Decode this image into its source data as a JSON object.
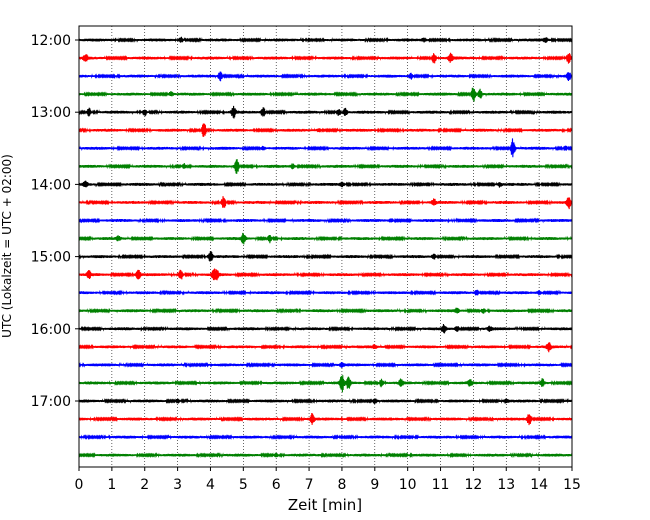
{
  "chart_data": {
    "type": "line",
    "title": "",
    "xlabel": "Zeit  [min]",
    "ylabel": "UTC (Lokalzeit = UTC + 02:00)",
    "xlim": [
      0,
      15
    ],
    "x_ticks": [
      "0",
      "1",
      "2",
      "3",
      "4",
      "5",
      "6",
      "7",
      "8",
      "9",
      "10",
      "11",
      "12",
      "13",
      "14",
      "15"
    ],
    "y_ticks": [
      "12:00",
      "13:00",
      "14:00",
      "15:00",
      "16:00",
      "17:00"
    ],
    "grid": "vertical dotted",
    "trace_interval_minutes": 15,
    "start_time": "12:00",
    "colors": [
      "#000000",
      "#ff0000",
      "#0000ff",
      "#008000"
    ],
    "series": [
      {
        "start": "12:00",
        "events": [
          [
            3.1,
            0.5
          ],
          [
            10.5,
            0.35
          ],
          [
            14.2,
            0.4
          ]
        ]
      },
      {
        "start": "12:15",
        "events": [
          [
            0.2,
            0.6
          ],
          [
            10.8,
            0.9
          ],
          [
            11.3,
            0.8
          ],
          [
            14.9,
            0.9
          ]
        ]
      },
      {
        "start": "12:30",
        "events": [
          [
            4.3,
            0.8
          ],
          [
            10.1,
            0.5
          ],
          [
            14.9,
            0.6
          ]
        ]
      },
      {
        "start": "12:45",
        "events": [
          [
            2.8,
            0.4
          ],
          [
            12.0,
            1.3
          ],
          [
            12.2,
            0.8
          ]
        ]
      },
      {
        "start": "13:00",
        "events": [
          [
            0.3,
            0.7
          ],
          [
            2.0,
            0.6
          ],
          [
            4.7,
            0.9
          ],
          [
            5.6,
            0.8
          ],
          [
            7.9,
            0.6
          ],
          [
            8.1,
            0.6
          ]
        ]
      },
      {
        "start": "13:15",
        "events": [
          [
            3.8,
            1.4
          ],
          [
            7.3,
            0.3
          ]
        ]
      },
      {
        "start": "13:30",
        "events": [
          [
            5.6,
            0.35
          ],
          [
            13.2,
            1.6
          ],
          [
            14.8,
            0.4
          ]
        ]
      },
      {
        "start": "13:45",
        "events": [
          [
            3.2,
            0.5
          ],
          [
            4.8,
            1.3
          ],
          [
            6.5,
            0.4
          ]
        ]
      },
      {
        "start": "14:00",
        "events": [
          [
            0.2,
            0.5
          ],
          [
            8.0,
            0.3
          ],
          [
            12.8,
            0.4
          ]
        ]
      },
      {
        "start": "14:15",
        "events": [
          [
            4.4,
            1.2
          ],
          [
            10.8,
            0.5
          ],
          [
            14.9,
            1.0
          ]
        ]
      },
      {
        "start": "14:30",
        "events": [
          [
            9.5,
            0.3
          ]
        ]
      },
      {
        "start": "14:45",
        "events": [
          [
            5.0,
            0.8
          ],
          [
            5.8,
            0.7
          ],
          [
            1.2,
            0.35
          ]
        ]
      },
      {
        "start": "15:00",
        "events": [
          [
            4.0,
            0.9
          ],
          [
            10.8,
            0.4
          ]
        ]
      },
      {
        "start": "15:15",
        "events": [
          [
            0.3,
            0.6
          ],
          [
            1.8,
            0.9
          ],
          [
            3.1,
            0.9
          ],
          [
            4.1,
            0.9
          ],
          [
            4.2,
            0.7
          ]
        ]
      },
      {
        "start": "15:30",
        "events": [
          [
            12.1,
            0.5
          ],
          [
            14.0,
            0.3
          ]
        ]
      },
      {
        "start": "15:45",
        "events": [
          [
            11.5,
            0.4
          ],
          [
            12.3,
            0.4
          ]
        ]
      },
      {
        "start": "16:00",
        "events": [
          [
            11.1,
            0.7
          ],
          [
            11.5,
            0.5
          ],
          [
            12.5,
            0.35
          ]
        ]
      },
      {
        "start": "16:15",
        "events": [
          [
            9.0,
            0.3
          ],
          [
            14.3,
            0.7
          ]
        ]
      },
      {
        "start": "16:30",
        "events": [
          [
            8.0,
            0.35
          ]
        ]
      },
      {
        "start": "16:45",
        "events": [
          [
            8.0,
            1.4
          ],
          [
            8.2,
            1.0
          ],
          [
            9.2,
            0.6
          ],
          [
            9.8,
            0.6
          ],
          [
            11.9,
            0.5
          ],
          [
            14.1,
            0.6
          ]
        ]
      },
      {
        "start": "17:00",
        "events": [
          [
            3.0,
            0.35
          ],
          [
            9.0,
            0.4
          ],
          [
            13.0,
            0.35
          ]
        ]
      },
      {
        "start": "17:15",
        "events": [
          [
            7.1,
            0.9
          ],
          [
            13.7,
            1.0
          ]
        ]
      },
      {
        "start": "17:30",
        "events": []
      },
      {
        "start": "17:45",
        "events": [
          [
            6.0,
            0.3
          ]
        ]
      }
    ]
  }
}
